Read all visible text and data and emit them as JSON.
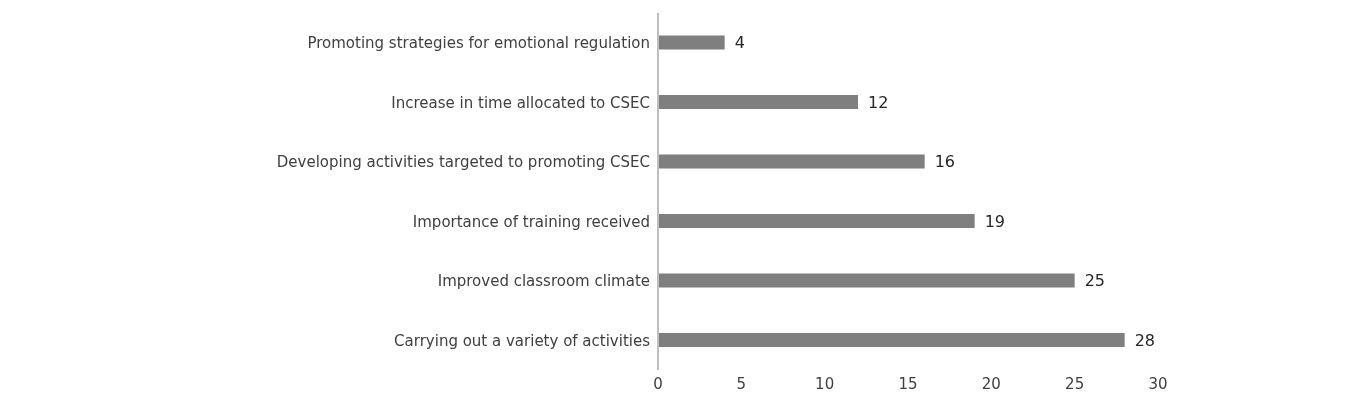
{
  "chart_data": {
    "type": "bar",
    "orientation": "horizontal",
    "categories": [
      "Promoting strategies for emotional regulation",
      "Increase in time allocated to CSEC",
      "Developing activities targeted to promoting CSEC",
      "Importance of training received",
      "Improved classroom climate",
      "Carrying out a variety of activities"
    ],
    "values": [
      4,
      12,
      16,
      19,
      25,
      28
    ],
    "color": "#7f7f7f",
    "xlim": [
      0,
      30
    ],
    "xticks": [
      0,
      5,
      10,
      15,
      20,
      25,
      30
    ],
    "grid": false,
    "data_labels": true
  }
}
